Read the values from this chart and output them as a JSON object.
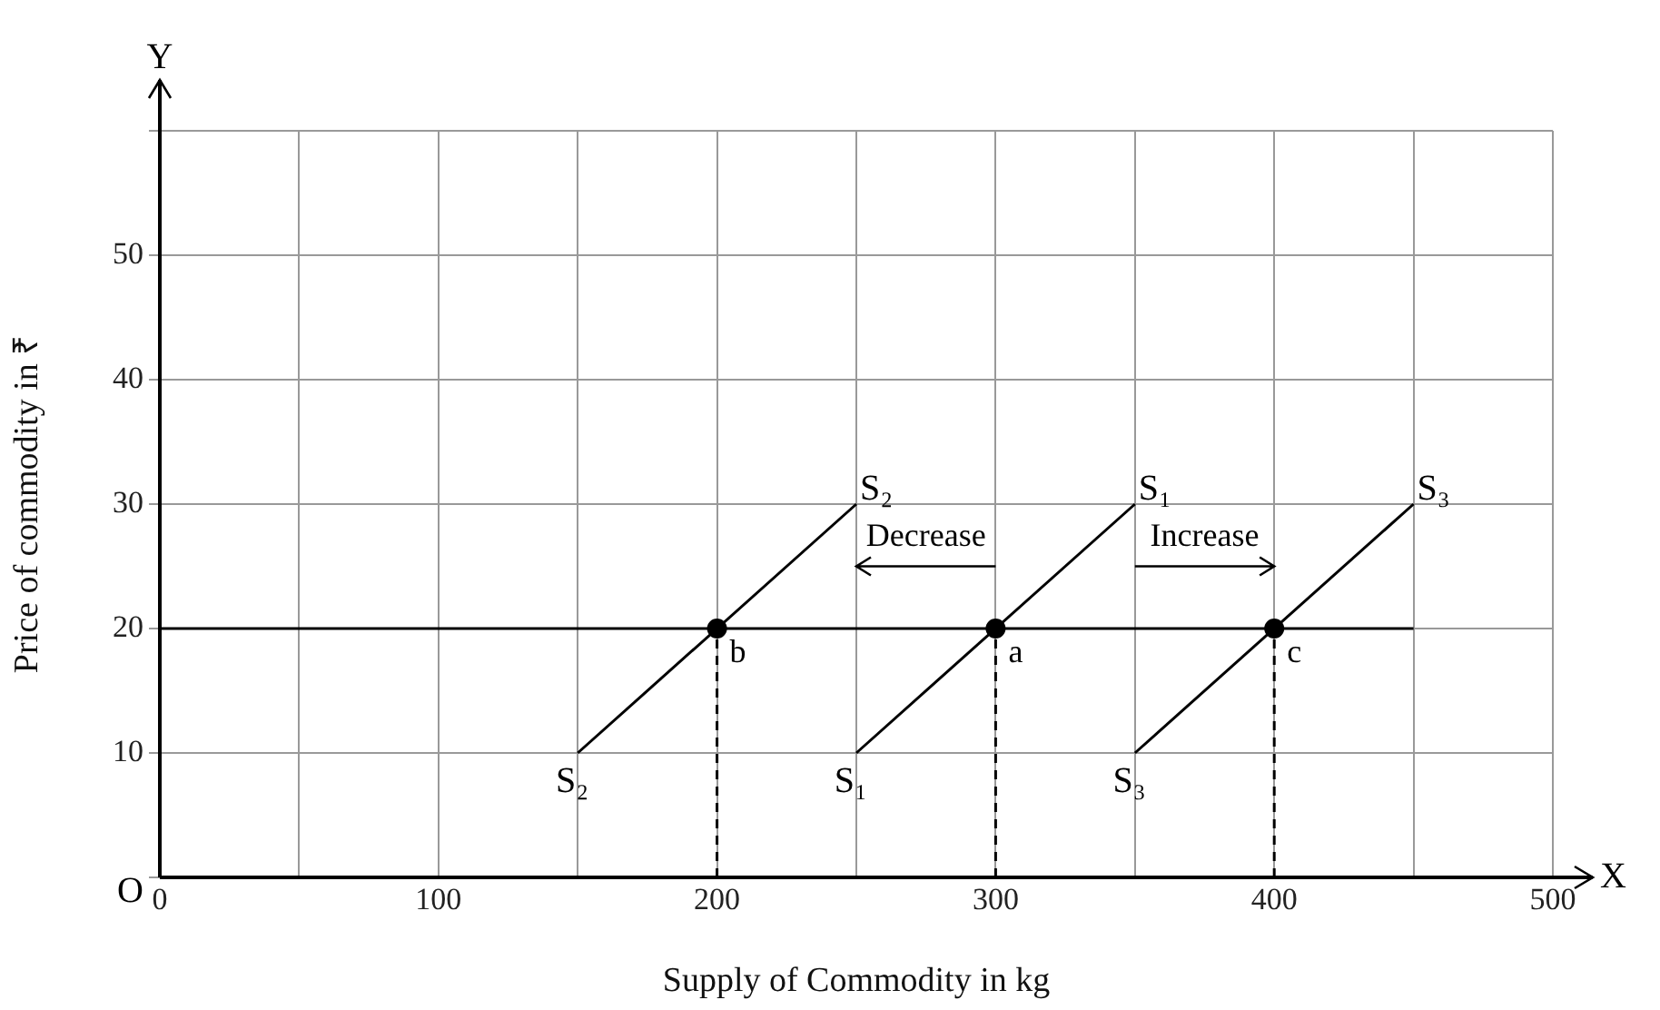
{
  "chart_data": {
    "type": "line",
    "xlabel": "Supply of Commodity in kg",
    "ylabel": "Price of commodity in ₹",
    "xlim": [
      0,
      500
    ],
    "ylim": [
      0,
      60
    ],
    "xticks": [
      0,
      {
        "value": 50,
        "label": null
      },
      100,
      {
        "value": 150,
        "label": null
      },
      200,
      {
        "value": 250,
        "label": null
      },
      300,
      {
        "value": 350,
        "label": null
      },
      400,
      {
        "value": 450,
        "label": null
      },
      500
    ],
    "yticks": [
      {
        "value": 0,
        "label": null
      },
      10,
      20,
      30,
      40,
      50,
      {
        "value": 60,
        "label": null
      }
    ],
    "grid": true,
    "legend": false,
    "series": [
      {
        "name": "S₂",
        "color": "#000000",
        "x": [
          150,
          250
        ],
        "values": [
          10,
          30
        ]
      },
      {
        "name": "S₁",
        "color": "#000000",
        "x": [
          250,
          350
        ],
        "values": [
          10,
          30
        ]
      },
      {
        "name": "S₃",
        "color": "#000000",
        "x": [
          350,
          450
        ],
        "values": [
          10,
          30
        ]
      },
      {
        "color": "#000000",
        "x": [
          0,
          450
        ],
        "values": [
          20,
          20
        ]
      },
      {
        "color": "#000000",
        "line_style": "dashed",
        "x": [
          200,
          200
        ],
        "values": [
          0,
          20
        ]
      },
      {
        "color": "#000000",
        "line_style": "dashed",
        "x": [
          300,
          300
        ],
        "values": [
          0,
          20
        ]
      },
      {
        "color": "#000000",
        "line_style": "dashed",
        "x": [
          400,
          400
        ],
        "values": [
          0,
          20
        ]
      },
      {
        "type": "scatter",
        "color": "#000000",
        "x": [
          200,
          300,
          400
        ],
        "values": [
          20,
          20,
          20
        ]
      }
    ],
    "annotations": [
      "Decrease",
      "Increase",
      {
        "text": "b",
        "x": 200,
        "y": 20
      },
      {
        "text": "a",
        "x": 300,
        "y": 20
      },
      {
        "text": "c",
        "x": 400,
        "y": 20
      },
      "X",
      "Y",
      "O"
    ]
  }
}
